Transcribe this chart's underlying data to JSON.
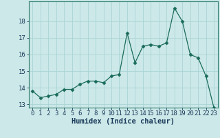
{
  "x": [
    0,
    1,
    2,
    3,
    4,
    5,
    6,
    7,
    8,
    9,
    10,
    11,
    12,
    13,
    14,
    15,
    16,
    17,
    18,
    19,
    20,
    21,
    22,
    23
  ],
  "y": [
    13.8,
    13.4,
    13.5,
    13.6,
    13.9,
    13.9,
    14.2,
    14.4,
    14.4,
    14.3,
    14.7,
    14.8,
    17.3,
    15.5,
    16.5,
    16.6,
    16.5,
    16.7,
    18.8,
    18.0,
    16.0,
    15.8,
    14.7,
    12.8
  ],
  "xlabel": "Humidex (Indice chaleur)",
  "ylabel": "",
  "line_color": "#1a6b5a",
  "marker": "D",
  "marker_size": 2.5,
  "bg_color": "#cce8e8",
  "grid_color": "#aad4d4",
  "xlim": [
    -0.5,
    23.5
  ],
  "ylim": [
    12.8,
    19.2
  ],
  "yticks": [
    13,
    14,
    15,
    16,
    17,
    18
  ],
  "xticks": [
    0,
    1,
    2,
    3,
    4,
    5,
    6,
    7,
    8,
    9,
    10,
    11,
    12,
    13,
    14,
    15,
    16,
    17,
    18,
    19,
    20,
    21,
    22,
    23
  ],
  "tick_fontsize": 6.5,
  "xlabel_fontsize": 7.5,
  "spine_color": "#2a7a6a"
}
